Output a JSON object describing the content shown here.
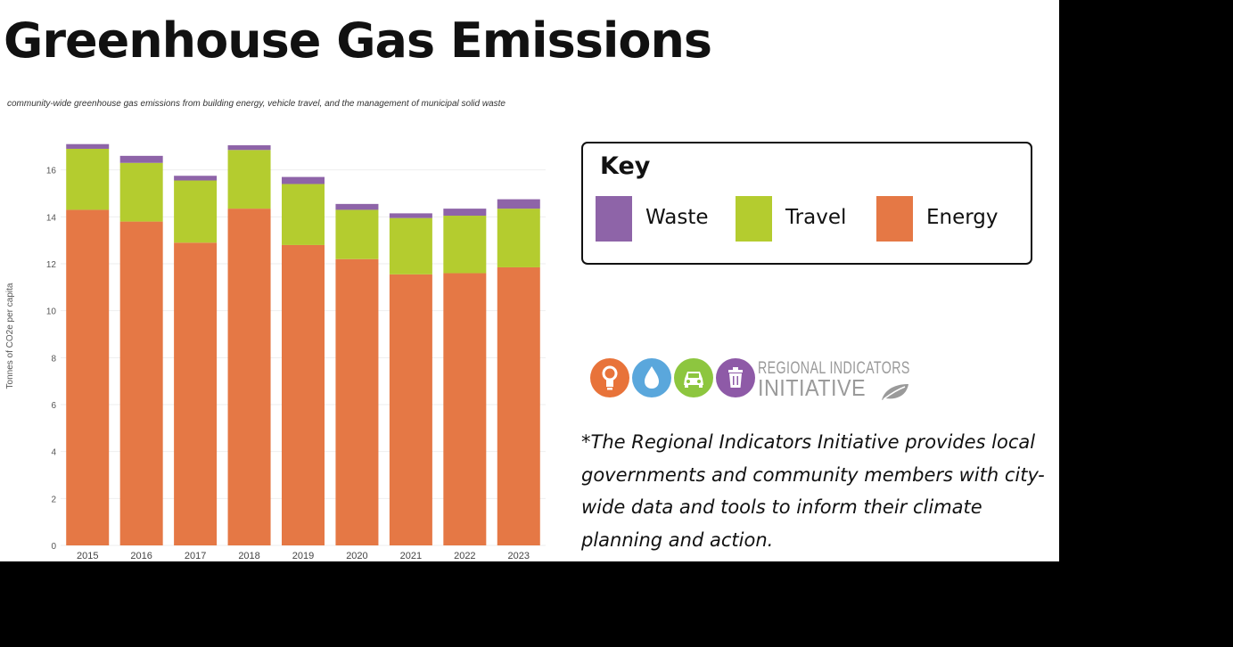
{
  "title": "Greenhouse Gas Emissions",
  "chart_data": {
    "type": "bar",
    "stacked": true,
    "title": "community-wide greenhouse gas emissions from building energy, vehicle travel, and the management of municipal solid waste",
    "xlabel": "",
    "ylabel": "Tonnes of CO2e per capita",
    "ylim": [
      0,
      18
    ],
    "yticks": [
      0,
      2,
      4,
      6,
      8,
      10,
      12,
      14,
      16
    ],
    "categories": [
      "2015",
      "2016",
      "2017",
      "2018",
      "2019",
      "2020",
      "2021",
      "2022",
      "2023"
    ],
    "series": [
      {
        "name": "Energy",
        "color": "#e57845",
        "values": [
          14.3,
          13.8,
          12.9,
          14.35,
          12.8,
          12.2,
          11.55,
          11.6,
          11.85
        ]
      },
      {
        "name": "Travel",
        "color": "#b4cc2f",
        "values": [
          2.6,
          2.5,
          2.65,
          2.5,
          2.6,
          2.1,
          2.4,
          2.45,
          2.5
        ]
      },
      {
        "name": "Waste",
        "color": "#8e64a8",
        "values": [
          0.2,
          0.3,
          0.2,
          0.2,
          0.3,
          0.25,
          0.2,
          0.3,
          0.4
        ]
      }
    ],
    "grid": true,
    "legend": "right"
  },
  "key": {
    "title": "Key",
    "items": [
      {
        "label": "Waste",
        "color": "#8e64a8"
      },
      {
        "label": "Travel",
        "color": "#b4cc2f"
      },
      {
        "label": "Energy",
        "color": "#e57845"
      }
    ]
  },
  "logo": {
    "line1": "REGIONAL INDICATORS",
    "line2": "INITIATIVE",
    "icons": [
      {
        "name": "lightbulb-icon",
        "color": "#e8733a"
      },
      {
        "name": "water-drop-icon",
        "color": "#5aa7dc"
      },
      {
        "name": "car-icon",
        "color": "#8dc63f"
      },
      {
        "name": "trash-can-icon",
        "color": "#8e5aa7"
      }
    ]
  },
  "footnote": "*The Regional Indicators Initiative provides local governments and community members with city-wide data and tools to inform their climate planning and action."
}
